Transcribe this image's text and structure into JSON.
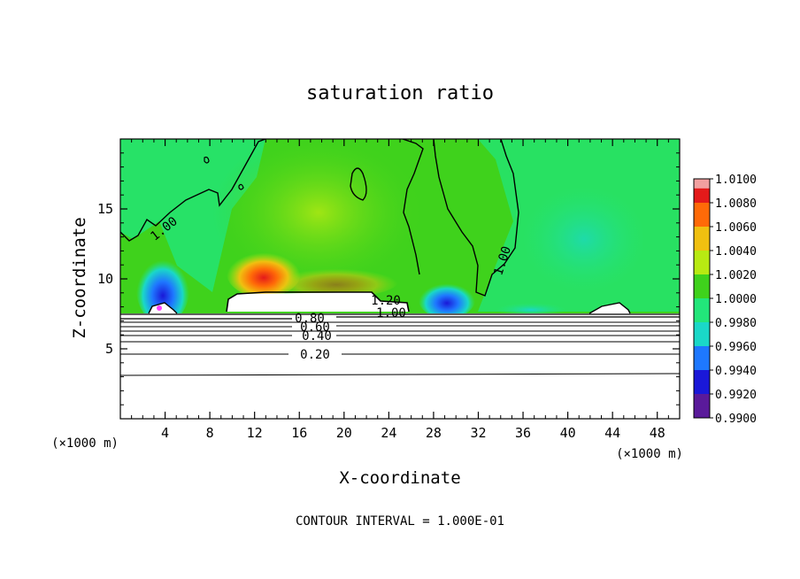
{
  "chart_data": {
    "type": "heatmap",
    "title": "saturation ratio",
    "xlabel": "X-coordinate",
    "ylabel": "Z-coordinate",
    "x_unit_left": "(×1000 m)",
    "x_unit_right": "(×1000 m)",
    "footer": "CONTOUR INTERVAL = 1.000E-01",
    "xlim": [
      0,
      50
    ],
    "ylim": [
      0,
      20
    ],
    "x_ticks": [
      4,
      8,
      12,
      16,
      20,
      24,
      28,
      32,
      36,
      40,
      44,
      48
    ],
    "y_ticks": [
      5,
      10,
      15
    ],
    "colorbar": {
      "levels": [
        "0.9900",
        "0.9920",
        "0.9940",
        "0.9960",
        "0.9980",
        "1.0000",
        "1.0020",
        "1.0040",
        "1.0060",
        "1.0080",
        "1.0100"
      ],
      "colors": [
        "#5a1a9a",
        "#1a18d8",
        "#1e78ff",
        "#1ad8c8",
        "#22e67a",
        "#3fd21c",
        "#b8ea12",
        "#f0c010",
        "#ff6a08",
        "#e41a1a",
        "#f2a0a0"
      ]
    },
    "contour_labels": [
      "1.00",
      "1.00",
      "1.20",
      "1.00",
      "0.80",
      "0.60",
      "0.40",
      "0.20"
    ],
    "background_color": "#2fe04a"
  }
}
